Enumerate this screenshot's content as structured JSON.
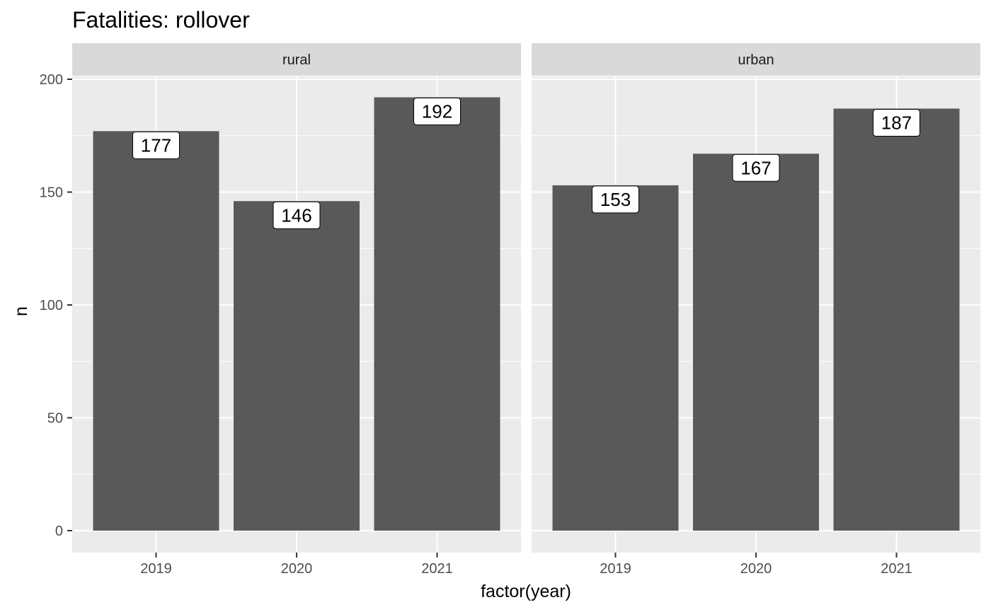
{
  "chart_data": {
    "type": "bar",
    "title": "Fatalities: rollover",
    "xlabel": "factor(year)",
    "ylabel": "n",
    "ylim": [
      0,
      210
    ],
    "yticks": [
      0,
      50,
      100,
      150,
      200
    ],
    "categories": [
      "2019",
      "2020",
      "2021"
    ],
    "grid": true,
    "legend": "none",
    "colors": {
      "bar": "#595959",
      "panel_bg": "#ebebeb",
      "strip_bg": "#d9d9d9",
      "grid": "#ffffff"
    },
    "facets": [
      {
        "name": "rural",
        "values": [
          177,
          146,
          192
        ]
      },
      {
        "name": "urban",
        "values": [
          153,
          167,
          187
        ]
      }
    ]
  }
}
